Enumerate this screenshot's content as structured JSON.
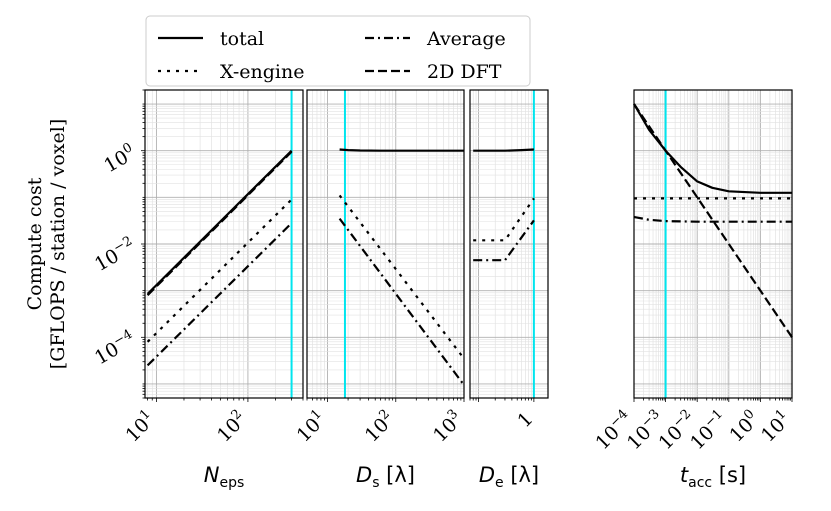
{
  "chart_data": {
    "type": "line",
    "shared_y": {
      "label_line1": "Compute cost",
      "label_line2": "[GFLOPS / station / voxel]",
      "scale": "log",
      "ylim": [
        5e-06,
        20
      ],
      "ticks": [
        {
          "value": 1,
          "base": "10",
          "exp": "0"
        },
        {
          "value": 0.01,
          "base": "10",
          "exp": "−2"
        },
        {
          "value": 0.0001,
          "base": "10",
          "exp": "−4"
        }
      ]
    },
    "legend": {
      "placement": "top-left (above panels)",
      "entries": [
        {
          "label": "total",
          "style": "solid"
        },
        {
          "label": "Average",
          "style": "dashdot"
        },
        {
          "label": "X-engine",
          "style": "dotted"
        },
        {
          "label": "2D DFT",
          "style": "dashed"
        }
      ]
    },
    "highlight_color": "#00e5ee",
    "panels": [
      {
        "xlabel_main": "N",
        "xlabel_sub": "eps",
        "xlabel_unit": "",
        "xscale": "log",
        "xlim": [
          7.5,
          400
        ],
        "xticks": [
          {
            "value": 10,
            "base": "10",
            "exp": "1"
          },
          {
            "value": 100,
            "base": "10",
            "exp": "2"
          }
        ],
        "vline": 300,
        "series": [
          {
            "name": "total",
            "style": "solid",
            "x": [
              8,
              300
            ],
            "y": [
              0.00085,
              1.0
            ]
          },
          {
            "name": "2D DFT",
            "style": "dashed",
            "x": [
              8,
              300
            ],
            "y": [
              0.0008,
              0.95
            ]
          },
          {
            "name": "X-engine",
            "style": "dotted",
            "x": [
              8,
              300
            ],
            "y": [
              8e-05,
              0.09
            ]
          },
          {
            "name": "Average",
            "style": "dashdot",
            "x": [
              8,
              300
            ],
            "y": [
              2.5e-05,
              0.028
            ]
          }
        ]
      },
      {
        "xlabel_main": "D",
        "xlabel_sub": "s",
        "xlabel_unit": "[λ]",
        "xscale": "log",
        "xlim": [
          5,
          1000
        ],
        "xticks": [
          {
            "value": 10,
            "base": "10",
            "exp": "1"
          },
          {
            "value": 100,
            "base": "10",
            "exp": "2"
          },
          {
            "value": 1000,
            "base": "10",
            "exp": "3"
          }
        ],
        "vline": 18,
        "series": [
          {
            "name": "total",
            "style": "solid",
            "x": [
              15,
              20,
              30,
              60,
              150,
              400,
              1000
            ],
            "y": [
              1.06,
              1.03,
              1.01,
              1.0,
              1.0,
              1.0,
              1.0
            ]
          },
          {
            "name": "X-engine",
            "style": "dotted",
            "x": [
              15,
              1000
            ],
            "y": [
              0.11,
              3.5e-05
            ]
          },
          {
            "name": "Average",
            "style": "dashdot",
            "x": [
              15,
              1000
            ],
            "y": [
              0.035,
              9.5e-06
            ]
          }
        ]
      },
      {
        "xlabel_main": "D",
        "xlabel_sub": "e",
        "xlabel_unit": "[λ]",
        "xscale": "log",
        "xlim": [
          0.07,
          1.8
        ],
        "xticks": [
          {
            "value": 1,
            "base": "1",
            "exp": ""
          }
        ],
        "vline": 1,
        "series": [
          {
            "name": "total",
            "style": "solid",
            "x": [
              0.08,
              0.3,
              0.6,
              1.0
            ],
            "y": [
              1.0,
              1.0,
              1.03,
              1.06
            ]
          },
          {
            "name": "X-engine",
            "style": "dotted",
            "x": [
              0.08,
              0.3,
              1.0
            ],
            "y": [
              0.012,
              0.012,
              0.095
            ]
          },
          {
            "name": "Average",
            "style": "dashdot",
            "x": [
              0.08,
              0.3,
              1.0
            ],
            "y": [
              0.0045,
              0.0045,
              0.032
            ]
          }
        ]
      },
      {
        "xlabel_main": "t",
        "xlabel_sub": "acc",
        "xlabel_unit": "[s]",
        "xscale": "log",
        "xlim": [
          0.0001,
          10
        ],
        "xticks": [
          {
            "value": 0.0001,
            "base": "10",
            "exp": "−4"
          },
          {
            "value": 0.001,
            "base": "10",
            "exp": "−3"
          },
          {
            "value": 0.01,
            "base": "10",
            "exp": "−2"
          },
          {
            "value": 0.1,
            "base": "10",
            "exp": "−1"
          },
          {
            "value": 1,
            "base": "10",
            "exp": "0"
          },
          {
            "value": 10,
            "base": "10",
            "exp": "1"
          }
        ],
        "vline": 0.001,
        "series": [
          {
            "name": "total",
            "style": "solid",
            "x": [
              0.0001,
              0.0003,
              0.001,
              0.003,
              0.01,
              0.03,
              0.1,
              1,
              10
            ],
            "y": [
              10,
              2.8,
              1.0,
              0.45,
              0.22,
              0.16,
              0.135,
              0.125,
              0.125
            ]
          },
          {
            "name": "2D DFT",
            "style": "dashed",
            "x": [
              0.0001,
              10
            ],
            "y": [
              10,
              0.0001
            ]
          },
          {
            "name": "X-engine",
            "style": "dotted",
            "x": [
              0.0001,
              10
            ],
            "y": [
              0.095,
              0.095
            ]
          },
          {
            "name": "Average",
            "style": "dashdot",
            "x": [
              0.0001,
              0.0003,
              0.001,
              0.01,
              0.1,
              10
            ],
            "y": [
              0.038,
              0.033,
              0.031,
              0.03,
              0.03,
              0.03
            ]
          }
        ]
      }
    ]
  }
}
